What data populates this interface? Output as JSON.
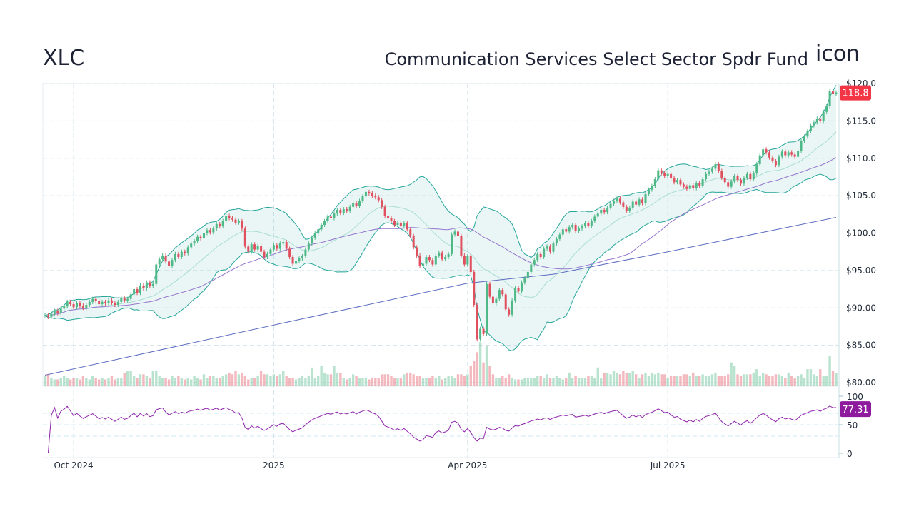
{
  "header": {
    "ticker": "XLC",
    "fund_name": "Communication Services Select Sector Spdr Fund",
    "logo_alt": "icon"
  },
  "chart_data": {
    "type": "candlestick",
    "price_axis": {
      "ticks": [
        "$120.0",
        "$115.0",
        "$110.0",
        "$105.0",
        "$100.0",
        "$95.00",
        "$90.00",
        "$85.00",
        "$80.00"
      ],
      "tick_values": [
        120,
        115,
        110,
        105,
        100,
        95,
        90,
        85,
        80
      ],
      "range": [
        80,
        120
      ]
    },
    "rsi_axis": {
      "ticks": [
        "100",
        "50",
        "0"
      ],
      "tick_values": [
        100,
        50,
        0
      ],
      "range": [
        0,
        100
      ],
      "guides": [
        70,
        50,
        30
      ]
    },
    "x_ticks": [
      {
        "label": "Oct 2024",
        "index": 9
      },
      {
        "label": "2025",
        "index": 72
      },
      {
        "label": "Apr 2025",
        "index": 133
      },
      {
        "label": "Jul 2025",
        "index": 196
      }
    ],
    "grid": true,
    "last_price": "118.8",
    "last_rsi": "77.31",
    "closes": [
      89.0,
      88.8,
      89.2,
      89.6,
      89.3,
      89.9,
      90.2,
      90.8,
      90.5,
      90.1,
      90.6,
      90.3,
      90.0,
      90.4,
      90.8,
      91.2,
      90.9,
      90.5,
      90.8,
      90.6,
      91.0,
      90.7,
      90.4,
      90.8,
      91.3,
      91.0,
      91.2,
      91.8,
      92.5,
      92.0,
      93.0,
      92.6,
      93.4,
      92.9,
      93.2,
      95.8,
      96.5,
      97.0,
      96.2,
      95.6,
      96.4,
      97.2,
      96.8,
      97.5,
      97.3,
      98.1,
      98.6,
      98.9,
      99.5,
      99.3,
      100.0,
      100.4,
      100.1,
      100.6,
      101.2,
      100.9,
      101.6,
      102.3,
      102.0,
      101.8,
      101.4,
      101.6,
      100.6,
      98.2,
      97.5,
      98.5,
      97.8,
      98.3,
      97.5,
      96.8,
      97.2,
      97.8,
      98.4,
      97.9,
      98.6,
      98.8,
      97.9,
      96.8,
      95.9,
      96.3,
      96.6,
      96.9,
      97.8,
      98.6,
      99.4,
      100.0,
      100.5,
      101.1,
      101.6,
      102.2,
      102.0,
      102.6,
      103.1,
      102.7,
      103.2,
      103.0,
      103.5,
      104.0,
      103.6,
      104.3,
      104.9,
      105.5,
      105.3,
      105.0,
      104.8,
      104.4,
      103.5,
      102.3,
      102.0,
      101.6,
      101.1,
      101.4,
      100.9,
      101.3,
      100.5,
      99.6,
      98.1,
      97.0,
      95.6,
      95.9,
      96.8,
      96.4,
      95.8,
      97.0,
      97.4,
      96.5,
      96.8,
      97.2,
      99.8,
      100.2,
      99.6,
      97.0,
      95.8,
      96.9,
      94.8,
      90.4,
      85.8,
      87.2,
      86.5,
      93.2,
      91.5,
      90.6,
      91.2,
      92.4,
      91.8,
      89.8,
      89.1,
      91.0,
      92.6,
      92.2,
      93.4,
      94.0,
      94.8,
      95.8,
      96.4,
      97.2,
      96.8,
      97.9,
      98.2,
      97.5,
      98.6,
      99.2,
      99.8,
      100.5,
      100.2,
      100.8,
      101.1,
      100.3,
      100.6,
      100.9,
      101.3,
      101.0,
      101.6,
      102.2,
      102.6,
      103.1,
      102.8,
      103.4,
      103.9,
      104.3,
      104.6,
      104.1,
      103.5,
      103.0,
      103.4,
      104.2,
      103.8,
      104.5,
      104.0,
      105.2,
      105.8,
      106.3,
      107.2,
      108.4,
      108.0,
      107.6,
      107.9,
      107.3,
      106.8,
      107.1,
      106.5,
      106.2,
      105.9,
      106.4,
      106.0,
      106.7,
      106.3,
      107.2,
      107.9,
      108.2,
      108.6,
      109.2,
      108.3,
      107.4,
      106.8,
      106.2,
      106.9,
      107.6,
      107.1,
      106.6,
      107.4,
      107.9,
      107.2,
      108.0,
      109.2,
      110.4,
      111.2,
      110.8,
      110.1,
      109.6,
      109.1,
      110.2,
      110.9,
      110.4,
      110.8,
      110.5,
      110.2,
      111.0,
      112.3,
      112.9,
      113.6,
      114.4,
      114.8,
      115.3,
      115.0,
      116.2,
      117.0,
      119.0,
      118.6,
      118.8
    ],
    "volumes": [
      6,
      7,
      5,
      4,
      4,
      5,
      6,
      5,
      4,
      5,
      5,
      4,
      6,
      5,
      4,
      6,
      5,
      4,
      5,
      4,
      5,
      6,
      4,
      5,
      5,
      8,
      9,
      9,
      6,
      5,
      7,
      7,
      6,
      5,
      9,
      9,
      6,
      5,
      5,
      4,
      6,
      5,
      6,
      5,
      4,
      5,
      4,
      6,
      5,
      4,
      7,
      5,
      6,
      6,
      5,
      5,
      6,
      7,
      8,
      7,
      9,
      7,
      8,
      6,
      4,
      5,
      5,
      6,
      9,
      7,
      7,
      6,
      7,
      6,
      7,
      9,
      6,
      5,
      5,
      4,
      5,
      6,
      5,
      6,
      11,
      5,
      6,
      12,
      8,
      7,
      7,
      12,
      8,
      8,
      5,
      4,
      5,
      7,
      6,
      5,
      5,
      5,
      4,
      5,
      5,
      5,
      7,
      7,
      7,
      6,
      5,
      5,
      5,
      7,
      8,
      8,
      7,
      6,
      6,
      5,
      5,
      5,
      6,
      5,
      6,
      4,
      5,
      6,
      6,
      5,
      7,
      7,
      6,
      7,
      12,
      15,
      20,
      26,
      14,
      24,
      12,
      7,
      5,
      5,
      6,
      5,
      7,
      5,
      4,
      4,
      4,
      5,
      5,
      5,
      5,
      6,
      6,
      5,
      7,
      5,
      5,
      6,
      5,
      4,
      5,
      8,
      5,
      6,
      5,
      5,
      5,
      6,
      6,
      5,
      11,
      5,
      8,
      8,
      7,
      9,
      8,
      7,
      9,
      8,
      8,
      9,
      7,
      5,
      7,
      8,
      6,
      8,
      7,
      8,
      7,
      7,
      5,
      6,
      6,
      6,
      6,
      7,
      7,
      6,
      8,
      6,
      6,
      7,
      6,
      6,
      7,
      8,
      6,
      6,
      6,
      7,
      14,
      12,
      7,
      6,
      7,
      7,
      7,
      8,
      10,
      6,
      8,
      7,
      6,
      6,
      7,
      7,
      6,
      5,
      8,
      6,
      5,
      6,
      7,
      5,
      10,
      10,
      7,
      6,
      10,
      6,
      6,
      18,
      9,
      8
    ],
    "indicators": {
      "bollinger": {
        "period": 20,
        "stdev": 2
      },
      "sma50": {
        "period": 50
      },
      "sma200": [
        [
          0,
          81.0
        ],
        [
          72,
          87.7
        ],
        [
          133,
          93.3
        ],
        [
          160,
          94.5
        ],
        [
          196,
          97.5
        ],
        [
          249,
          102.1
        ]
      ],
      "rsi": {
        "period": 14
      }
    },
    "colors": {
      "up": "#4fb887",
      "down": "#e0505f",
      "band": "#26a69a",
      "band_mid": "#a8ddd2",
      "sma50": "#9575cd",
      "sma200": "#5c6bc0",
      "rsi": "#8e24aa",
      "price_badge": "#f23645",
      "rsi_badge": "#8e1a9e",
      "grid": "#d3e3ea"
    }
  }
}
